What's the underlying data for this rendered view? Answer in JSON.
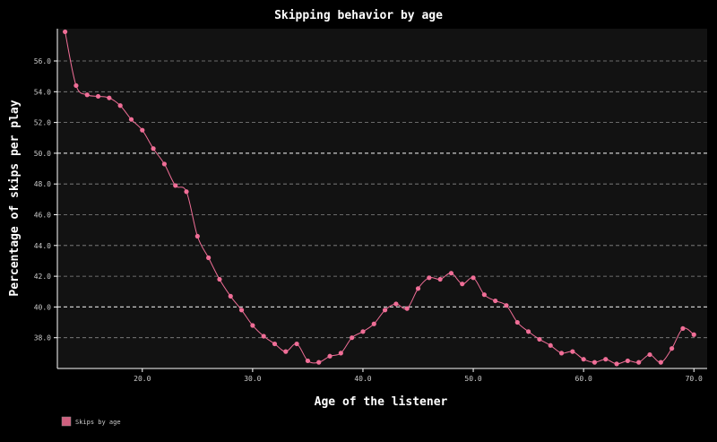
{
  "chart_data": {
    "type": "line",
    "title": "Skipping behavior by age",
    "xlabel": "Age of the listener",
    "ylabel": "Percentage of skips per play",
    "xlim": [
      12.3,
      71.2
    ],
    "ylim": [
      36.0,
      58.1
    ],
    "xticks": [
      20,
      30,
      40,
      50,
      60,
      70
    ],
    "yticks": [
      38,
      40,
      42,
      44,
      46,
      48,
      50,
      52,
      54,
      56
    ],
    "major_yticks": [
      40,
      50
    ],
    "grid": "horizontal dashed",
    "legend_position": "bottom-left",
    "colors": {
      "series": "#f06e97",
      "background": "#121212",
      "axes": "#ffffff",
      "grid": "#888888"
    },
    "series": [
      {
        "name": "Skips by age",
        "x": [
          13,
          14,
          15,
          16,
          17,
          18,
          19,
          20,
          21,
          22,
          23,
          24,
          25,
          26,
          27,
          28,
          29,
          30,
          31,
          32,
          33,
          34,
          35,
          36,
          37,
          38,
          39,
          40,
          41,
          42,
          43,
          44,
          45,
          46,
          47,
          48,
          49,
          50,
          51,
          52,
          53,
          54,
          55,
          56,
          57,
          58,
          59,
          60,
          61,
          62,
          63,
          64,
          65,
          66,
          67,
          68,
          69,
          70
        ],
        "y": [
          57.9,
          54.4,
          53.8,
          53.7,
          53.6,
          53.1,
          52.2,
          51.5,
          50.3,
          49.3,
          47.9,
          47.5,
          44.6,
          43.2,
          41.8,
          40.7,
          39.8,
          38.8,
          38.1,
          37.6,
          37.1,
          37.6,
          36.5,
          36.4,
          36.8,
          37.0,
          38.0,
          38.4,
          38.9,
          39.8,
          40.2,
          39.9,
          41.2,
          41.9,
          41.8,
          42.2,
          41.5,
          41.9,
          40.8,
          40.4,
          40.1,
          39.0,
          38.4,
          37.9,
          37.5,
          37.0,
          37.1,
          36.6,
          36.4,
          36.6,
          36.3,
          36.5,
          36.4,
          36.9,
          36.4,
          37.3,
          38.6,
          38.2
        ]
      }
    ]
  }
}
